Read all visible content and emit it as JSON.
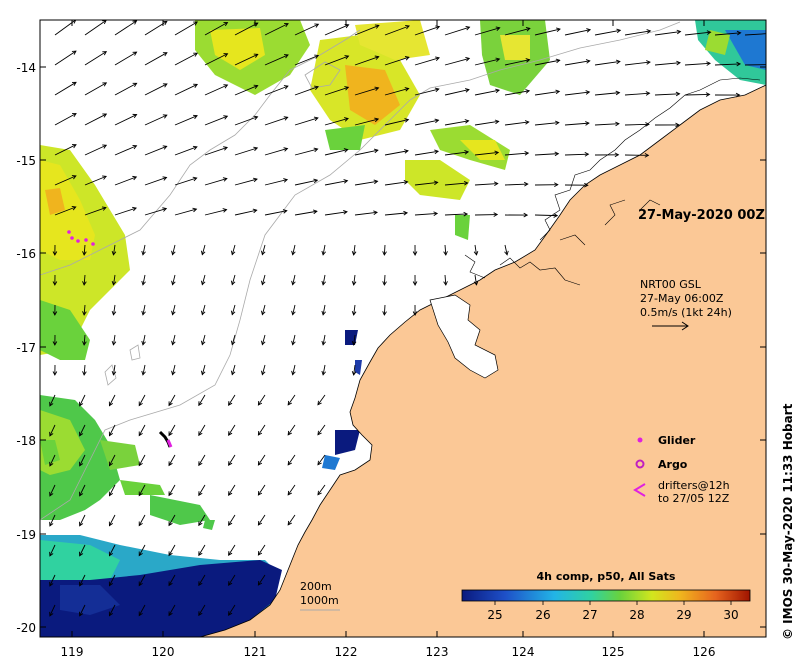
{
  "date_title": "27-May-2020 00Z",
  "current_info": {
    "product": "NRT00 GSL",
    "time": "27-May 06:00Z",
    "scale": "0.5m/s (1kt 24h)"
  },
  "legend": {
    "glider": "Glider",
    "argo": "Argo",
    "drifters_line1": "drifters@12h",
    "drifters_line2": "to 27/05 12Z"
  },
  "colorbar": {
    "title": "4h comp, p50, All Sats",
    "ticks": [
      "25",
      "26",
      "27",
      "28",
      "29",
      "30"
    ]
  },
  "isobaths": [
    "200m",
    "1000m"
  ],
  "credit": "© IMOS 30-May-2020 11:33 Hobart",
  "axes": {
    "x_ticks": [
      "119",
      "120",
      "121",
      "122",
      "123",
      "124",
      "125",
      "126"
    ],
    "y_ticks": [
      "-14",
      "-15",
      "-16",
      "-17",
      "-18",
      "-19",
      "-20"
    ]
  },
  "colors": {
    "land": "#fbc896",
    "sst_low": "#0a1a7e",
    "sst_high": "#b21a00",
    "glider": "#e020e0",
    "argo": "#c020c0"
  }
}
